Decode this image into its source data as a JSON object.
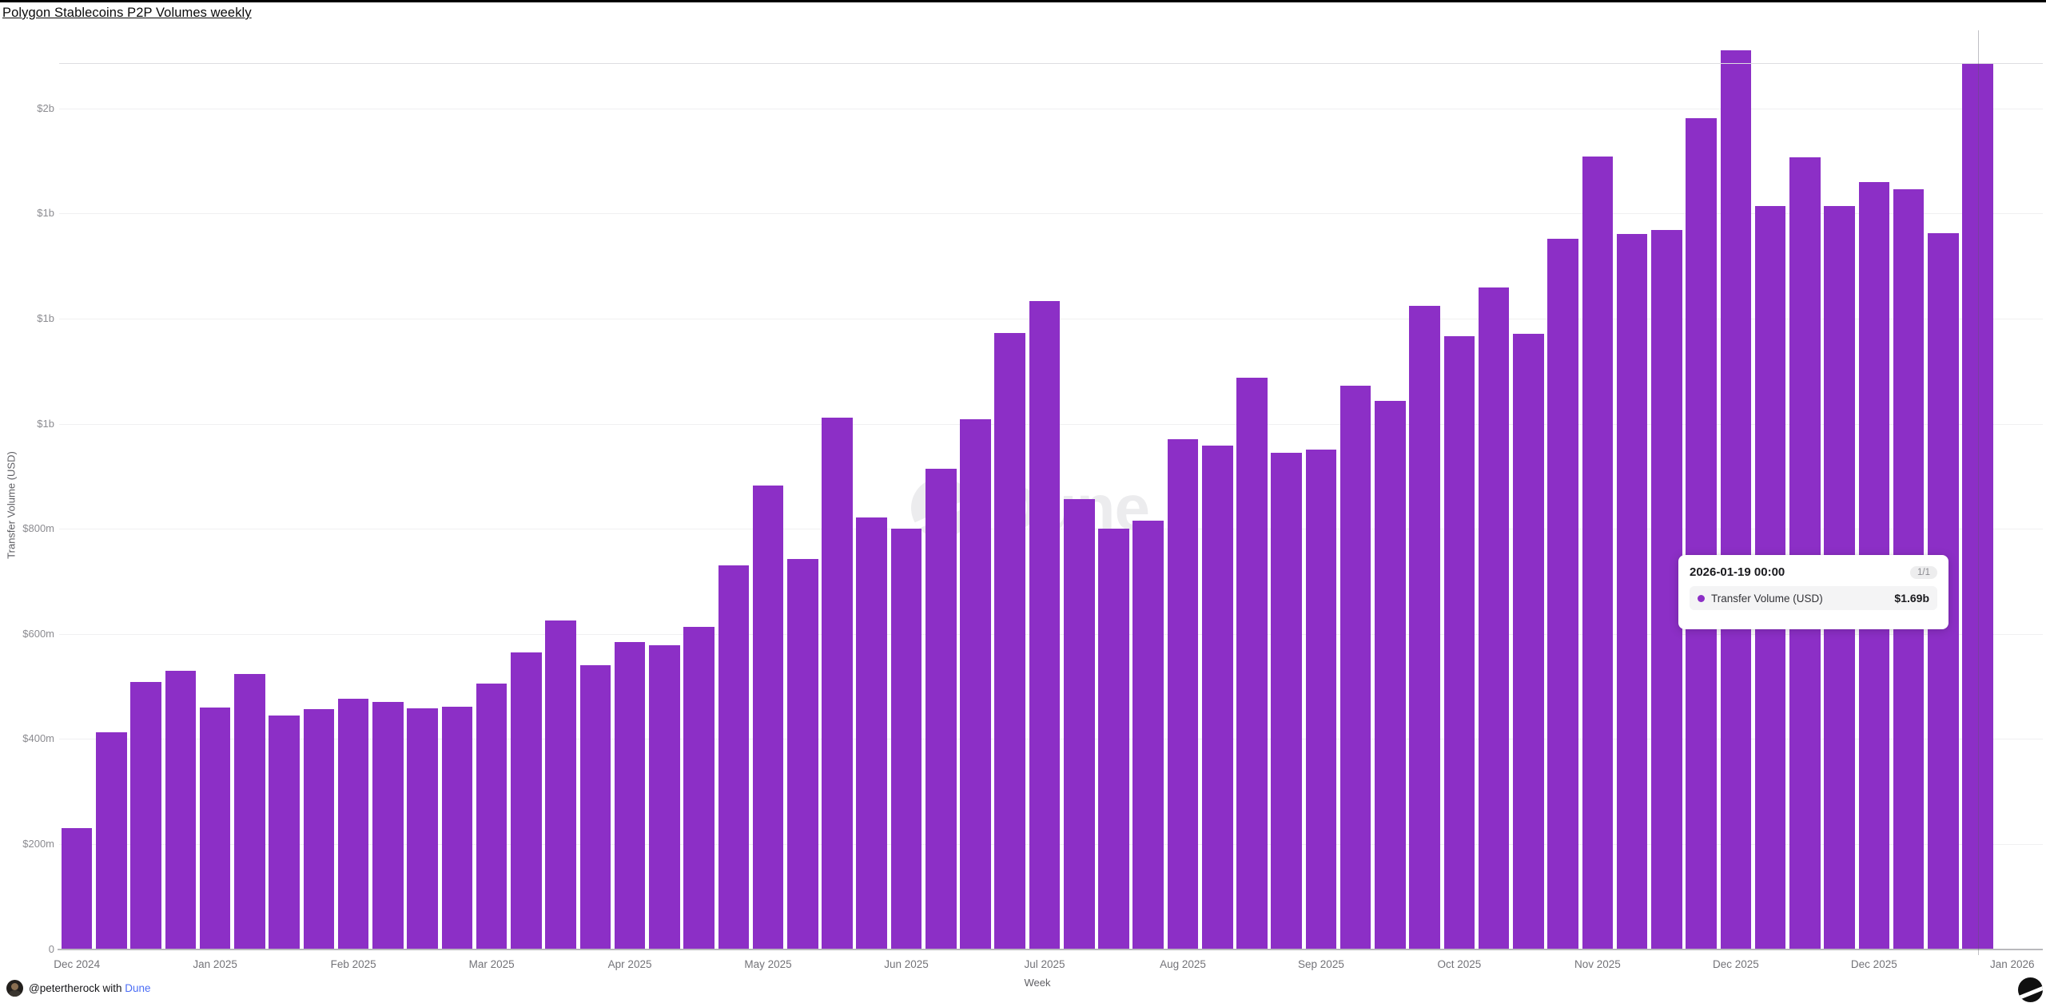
{
  "page": {
    "title": "Polygon Stablecoins P2P Volumes weekly"
  },
  "chart_data": {
    "type": "bar",
    "title": "Polygon Stablecoins P2P Volumes weekly",
    "xlabel": "Week",
    "ylabel": "Transfer Volume (USD)",
    "series_name": "Transfer Volume (USD)",
    "unit": "USD millions",
    "bar_color": "#8c2fc6",
    "grid": "horizontal",
    "ylim_m": [
      0,
      1800
    ],
    "x": [
      "2024-12-30",
      "2025-01-06",
      "2025-01-13",
      "2025-01-20",
      "2025-01-27",
      "2025-02-03",
      "2025-02-10",
      "2025-02-17",
      "2025-02-24",
      "2025-03-03",
      "2025-03-10",
      "2025-03-17",
      "2025-03-24",
      "2025-03-31",
      "2025-04-07",
      "2025-04-14",
      "2025-04-21",
      "2025-04-28",
      "2025-05-05",
      "2025-05-12",
      "2025-05-19",
      "2025-05-26",
      "2025-06-02",
      "2025-06-09",
      "2025-06-16",
      "2025-06-23",
      "2025-06-30",
      "2025-07-07",
      "2025-07-14",
      "2025-07-21",
      "2025-07-28",
      "2025-08-04",
      "2025-08-11",
      "2025-08-18",
      "2025-08-25",
      "2025-09-01",
      "2025-09-08",
      "2025-09-15",
      "2025-09-22",
      "2025-09-29",
      "2025-10-06",
      "2025-10-13",
      "2025-10-20",
      "2025-10-27",
      "2025-11-03",
      "2025-11-10",
      "2025-11-17",
      "2025-11-24",
      "2025-12-01",
      "2025-12-08",
      "2025-12-15",
      "2025-12-22",
      "2025-12-29",
      "2026-01-05",
      "2026-01-12",
      "2026-01-19"
    ],
    "values_musd": [
      230,
      412,
      509,
      530,
      460,
      524,
      445,
      456,
      477,
      470,
      459,
      462,
      505,
      565,
      626,
      540,
      585,
      579,
      614,
      731,
      883,
      742,
      1012,
      822,
      800,
      915,
      1008,
      1173,
      1234,
      857,
      800,
      816,
      970,
      959,
      1088,
      945,
      951,
      1072,
      1044,
      1225,
      1166,
      1260,
      1171,
      1352,
      1508,
      1361,
      1368,
      1582,
      1710,
      1414,
      1507,
      1414,
      1460,
      1447,
      1363,
      1686
    ],
    "y_ticks": [
      {
        "value_m": 0,
        "label": "0"
      },
      {
        "value_m": 200,
        "label": "$200m"
      },
      {
        "value_m": 400,
        "label": "$400m"
      },
      {
        "value_m": 600,
        "label": "$600m"
      },
      {
        "value_m": 800,
        "label": "$800m"
      },
      {
        "value_m": 1000,
        "label": "$1b"
      },
      {
        "value_m": 1200,
        "label": "$1b"
      },
      {
        "value_m": 1400,
        "label": "$1b"
      },
      {
        "value_m": 1600,
        "label": "$2b"
      }
    ],
    "x_tick_labels": [
      "Dec 2024",
      "Jan 2025",
      "Feb 2025",
      "Mar 2025",
      "Apr 2025",
      "May 2025",
      "Jun 2025",
      "Jul 2025",
      "Aug 2025",
      "Sep 2025",
      "Oct 2025",
      "Nov 2025",
      "Dec 2025",
      "Dec 2025",
      "Jan 2026"
    ]
  },
  "tooltip": {
    "date": "2026-01-19 00:00",
    "page_indicator": "1/1",
    "series": "Transfer Volume (USD)",
    "value": "$1.69b",
    "dot_color": "#8c2fc6",
    "hovered_value_musd": 1686
  },
  "watermark": {
    "text": "Dune"
  },
  "footer": {
    "handle": "@petertherock",
    "middle": " with ",
    "brand": "Dune"
  }
}
